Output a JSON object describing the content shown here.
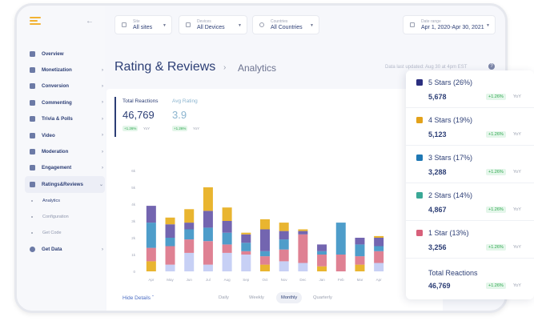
{
  "sidebar": {
    "items": [
      {
        "label": "Overview",
        "chevron": false
      },
      {
        "label": "Monetization",
        "chevron": true
      },
      {
        "label": "Conversion",
        "chevron": true
      },
      {
        "label": "Commenting",
        "chevron": true
      },
      {
        "label": "Trivia & Polls",
        "chevron": true
      },
      {
        "label": "Video",
        "chevron": true
      },
      {
        "label": "Moderation",
        "chevron": true
      },
      {
        "label": "Engagement",
        "chevron": true
      },
      {
        "label": "Ratings&Reviews",
        "chevron": true
      }
    ],
    "subitems": [
      "Analytics",
      "Configuration",
      "Get Code"
    ],
    "last_item": "Get Data"
  },
  "filters": {
    "site": {
      "label": "Site",
      "value": "All sites"
    },
    "devices": {
      "label": "Devices",
      "value": "All Devices"
    },
    "countries": {
      "label": "Countries",
      "value": "All Countries"
    },
    "date": {
      "label": "Date range",
      "value": "Apr 1, 2020-Apr 30, 2021"
    }
  },
  "header": {
    "title": "Rating & Reviews",
    "breadcrumb": "Analytics",
    "updated": "Data last updated: Aug 30 at 4pm EST"
  },
  "stats": {
    "total_label": "Total Reactions",
    "total_value": "46,769",
    "total_badge": "+1.26%",
    "avg_label": "Avg Rating",
    "avg_value": "3.9",
    "avg_badge": "+1.26%",
    "yoy": "YoY"
  },
  "chart_data": {
    "type": "bar",
    "stacked": true,
    "categories": [
      "Apr",
      "May",
      "Jun",
      "Jul",
      "Aug",
      "Sep",
      "Oct",
      "Nov",
      "Dec",
      "Jan",
      "Feb",
      "Mar",
      "Apr"
    ],
    "y_ticks": [
      "0",
      "1k",
      "2k",
      "3k",
      "4k",
      "5k",
      "6k"
    ],
    "ylim": [
      0,
      6000
    ],
    "series": [
      {
        "color": "#c7d0f5",
        "values": [
          0,
          400,
          1100,
          400,
          1100,
          1000,
          0,
          600,
          500,
          0,
          0,
          0,
          500
        ]
      },
      {
        "color": "#e9b530",
        "values": [
          600,
          0,
          0,
          0,
          0,
          0,
          400,
          0,
          0,
          300,
          0,
          400,
          0
        ]
      },
      {
        "color": "#df8193",
        "values": [
          800,
          1100,
          800,
          1400,
          500,
          200,
          500,
          700,
          1700,
          700,
          1000,
          500,
          700
        ]
      },
      {
        "color": "#4e9dca",
        "values": [
          1500,
          500,
          600,
          800,
          700,
          500,
          300,
          600,
          0,
          200,
          1900,
          700,
          300
        ]
      },
      {
        "color": "#7365b0",
        "values": [
          1000,
          800,
          400,
          1000,
          700,
          500,
          1300,
          500,
          200,
          400,
          0,
          400,
          500
        ]
      },
      {
        "color": "#e9b530",
        "values": [
          0,
          400,
          800,
          1400,
          800,
          100,
          600,
          500,
          100,
          0,
          0,
          0,
          100
        ]
      }
    ]
  },
  "footer": {
    "hide_details": "Hide Details",
    "periods": [
      "Daily",
      "Weekly",
      "Monthly",
      "Quarterly"
    ]
  },
  "legend": {
    "rows": [
      {
        "name": "5 Stars (26%)",
        "value": "5,678",
        "color": "#2b2f7f"
      },
      {
        "name": "4 Stars (19%)",
        "value": "5,123",
        "color": "#e3a21a"
      },
      {
        "name": "3 Stars (17%)",
        "value": "3,288",
        "color": "#1f78b4"
      },
      {
        "name": "2 Stars (14%)",
        "value": "4,867",
        "color": "#3aa896"
      },
      {
        "name": "1 Star (13%)",
        "value": "3,256",
        "color": "#d8607a"
      }
    ],
    "badge": "+1.26%",
    "yoy": "YoY",
    "total_label": "Total Reactions",
    "total_value": "46,769"
  }
}
